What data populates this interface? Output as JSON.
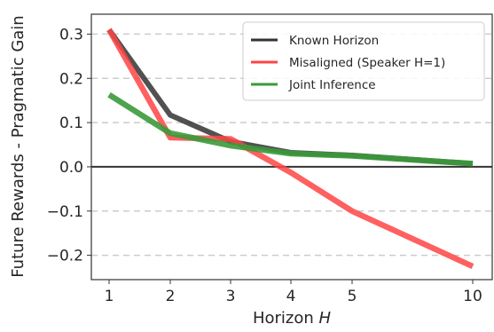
{
  "chart_data": {
    "type": "line",
    "title": "",
    "xlabel_prefix": "Horizon ",
    "xlabel_var": "H",
    "ylabel": "Future Rewards - Pragmatic Gain",
    "x": [
      "1",
      "2",
      "3",
      "4",
      "5",
      "10"
    ],
    "ylim": [
      -0.255,
      0.345
    ],
    "yticks": [
      0.3,
      0.2,
      0.1,
      0.0,
      -0.1,
      -0.2
    ],
    "ytick_labels": [
      "0.3",
      "0.2",
      "0.1",
      "0.0",
      "−0.1",
      "−0.2"
    ],
    "grid": "horizontal-dashed",
    "zero_line": true,
    "legend_position": "upper right",
    "series": [
      {
        "name": "Known Horizon",
        "color": "#333333",
        "values": [
          0.31,
          0.117,
          0.057,
          0.032,
          0.026,
          0.007
        ]
      },
      {
        "name": "Misaligned (Speaker H=1)",
        "color": "#ff4444",
        "values": [
          0.31,
          0.066,
          0.063,
          -0.013,
          -0.1,
          -0.225
        ]
      },
      {
        "name": "Joint Inference",
        "color": "#3a9a3a",
        "values": [
          0.163,
          0.076,
          0.048,
          0.03,
          0.025,
          0.007
        ]
      }
    ]
  }
}
